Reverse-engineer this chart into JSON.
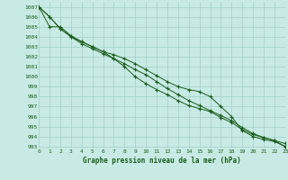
{
  "title": "Graphe pression niveau de la mer (hPa)",
  "xlim": [
    0,
    23
  ],
  "ylim": [
    992.8,
    1007.5
  ],
  "yticks": [
    993,
    994,
    995,
    996,
    997,
    998,
    999,
    1000,
    1001,
    1002,
    1003,
    1004,
    1005,
    1006,
    1007
  ],
  "xticks": [
    0,
    1,
    2,
    3,
    4,
    5,
    6,
    7,
    8,
    9,
    10,
    11,
    12,
    13,
    14,
    15,
    16,
    17,
    18,
    19,
    20,
    21,
    22,
    23
  ],
  "bg_color": "#c8eae4",
  "grid_color": "#a0d0c8",
  "line_color": "#1a5c1a",
  "line1": [
    1007.0,
    1006.0,
    1004.8,
    1004.0,
    1003.3,
    1002.8,
    1002.3,
    1001.8,
    1001.3,
    1000.7,
    1000.2,
    999.5,
    998.8,
    998.2,
    997.6,
    997.1,
    996.6,
    996.1,
    995.6,
    994.9,
    994.3,
    993.9,
    993.6,
    993.3
  ],
  "line2": [
    1007.0,
    1005.0,
    1005.0,
    1004.1,
    1003.5,
    1003.0,
    1002.5,
    1002.2,
    1001.8,
    1001.3,
    1000.7,
    1000.1,
    999.5,
    999.0,
    998.7,
    998.5,
    998.0,
    997.0,
    996.0,
    994.6,
    994.0,
    993.7,
    993.5,
    993.0
  ],
  "line3": [
    1007.0,
    1006.0,
    1004.8,
    1004.0,
    1003.5,
    1003.0,
    1002.5,
    1001.8,
    1001.0,
    1000.0,
    999.3,
    998.7,
    998.2,
    997.6,
    997.1,
    996.8,
    996.5,
    995.9,
    995.4,
    994.7,
    994.2,
    993.9,
    993.6,
    993.0
  ]
}
